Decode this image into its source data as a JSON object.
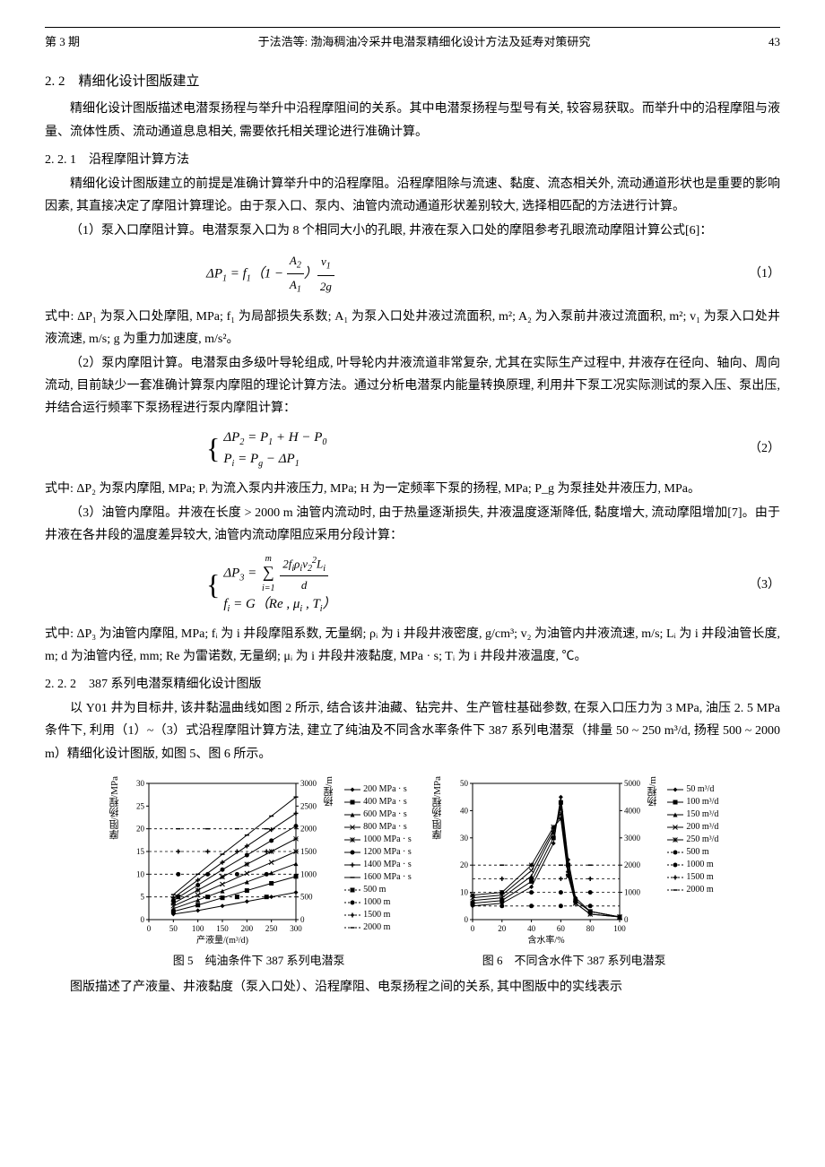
{
  "header": {
    "issue": "第 3 期",
    "title": "于法浩等: 渤海稠油冷采井电潜泵精细化设计方法及延寿对策研究",
    "page": "43"
  },
  "s22": {
    "title": "2. 2　精细化设计图版建立",
    "p1": "精细化设计图版描述电潜泵扬程与举升中沿程摩阻间的关系。其中电潜泵扬程与型号有关, 较容易获取。而举升中的沿程摩阻与液量、流体性质、流动通道息息相关, 需要依托相关理论进行准确计算。"
  },
  "s221": {
    "title": "2. 2. 1　沿程摩阻计算方法",
    "p1": "精细化设计图版建立的前提是准确计算举升中的沿程摩阻。沿程摩阻除与流速、黏度、流态相关外, 流动通道形状也是重要的影响因素, 其直接决定了摩阻计算理论。由于泵入口、泵内、油管内流动通道形状差别较大, 选择相匹配的方法进行计算。",
    "p2": "（1）泵入口摩阻计算。电潜泵泵入口为 8 个相同大小的孔眼, 井液在泵入口处的摩阻参考孔眼流动摩阻计算公式[6]：",
    "eq1_num": "（1）",
    "eq1_desc": "式中: ΔP₁ 为泵入口处摩阻, MPa; f₁ 为局部损失系数; A₁ 为泵入口处井液过流面积, m²; A₂ 为入泵前井液过流面积, m²; v₁ 为泵入口处井液流速, m/s; g 为重力加速度, m/s²。",
    "p3": "（2）泵内摩阻计算。电潜泵由多级叶导轮组成, 叶导轮内井液流道非常复杂, 尤其在实际生产过程中, 井液存在径向、轴向、周向流动, 目前缺少一套准确计算泵内摩阻的理论计算方法。通过分析电潜泵内能量转换原理, 利用井下泵工况实际测试的泵入压、泵出压, 并结合运行频率下泵扬程进行泵内摩阻计算：",
    "eq2_num": "（2）",
    "eq2_desc": "式中: ΔP₂ 为泵内摩阻, MPa; Pᵢ 为流入泵内井液压力, MPa; H 为一定频率下泵的扬程, MPa; P_g 为泵挂处井液压力, MPa。",
    "p4": "（3）油管内摩阻。井液在长度 > 2000 m 油管内流动时, 由于热量逐渐损失, 井液温度逐渐降低, 黏度增大, 流动摩阻增加[7]。由于井液在各井段的温度差异较大, 油管内流动摩阻应采用分段计算：",
    "eq3_num": "（3）",
    "eq3_desc": "式中: ΔP₃ 为油管内摩阻, MPa; fᵢ 为 i 井段摩阻系数, 无量纲; ρᵢ 为 i 井段井液密度, g/cm³; v₂ 为油管内井液流速, m/s; Lᵢ 为 i 井段油管长度, m; d 为油管内径, mm; Re 为雷诺数, 无量纲; μᵢ 为 i 井段井液黏度, MPa · s; Tᵢ 为 i 井段井液温度, ℃。"
  },
  "s222": {
    "title": "2. 2. 2　387 系列电潜泵精细化设计图版",
    "p1": "以 Y01 井为目标井, 该井黏温曲线如图 2 所示, 结合该井油藏、钻完井、生产管柱基础参数, 在泵入口压力为 3 MPa, 油压 2. 5 MPa 条件下, 利用（1）~（3）式沿程摩阻计算方法, 建立了纯油及不同含水率条件下 387 系列电潜泵（排量 50 ~ 250 m³/d, 扬程 500 ~ 2000 m）精细化设计图版, 如图 5、图 6 所示。"
  },
  "fig5": {
    "caption": "图 5　纯油条件下 387 系列电潜泵",
    "x_label": "产液量/(m³/d)",
    "y_left_label": "摩阻/扬程/MPa",
    "y_right_label": "扬程/m",
    "x_ticks": [
      "0",
      "50",
      "100",
      "150",
      "200",
      "250",
      "300"
    ],
    "y_left_ticks": [
      "0",
      "5",
      "10",
      "15",
      "20",
      "25",
      "30"
    ],
    "y_right_ticks": [
      "0",
      "500",
      "1000",
      "1500",
      "2000",
      "2500",
      "3000"
    ],
    "legend_viscosity": [
      "200 MPa · s",
      "400 MPa · s",
      "600 MPa · s",
      "800 MPa · s",
      "1000 MPa · s",
      "1200 MPa · s",
      "1400 MPa · s",
      "1600 MPa · s"
    ],
    "legend_head": [
      "500 m",
      "1000 m",
      "1500 m",
      "2000 m"
    ],
    "series": {
      "v200": [
        [
          50,
          1.2
        ],
        [
          100,
          2.0
        ],
        [
          150,
          3.0
        ],
        [
          200,
          4.0
        ],
        [
          250,
          5.0
        ],
        [
          300,
          6.0
        ]
      ],
      "v400": [
        [
          50,
          1.8
        ],
        [
          100,
          3.2
        ],
        [
          150,
          4.8
        ],
        [
          200,
          6.4
        ],
        [
          250,
          8.0
        ],
        [
          300,
          9.5
        ]
      ],
      "v600": [
        [
          50,
          2.4
        ],
        [
          100,
          4.3
        ],
        [
          150,
          6.3
        ],
        [
          200,
          8.3
        ],
        [
          250,
          10.3
        ],
        [
          300,
          12.3
        ]
      ],
      "v800": [
        [
          50,
          3.0
        ],
        [
          100,
          5.4
        ],
        [
          150,
          7.8
        ],
        [
          200,
          10.2
        ],
        [
          250,
          12.6
        ],
        [
          300,
          15.0
        ]
      ],
      "v1000": [
        [
          50,
          3.6
        ],
        [
          100,
          6.5
        ],
        [
          150,
          9.4
        ],
        [
          200,
          12.2
        ],
        [
          250,
          15.0
        ],
        [
          300,
          17.8
        ]
      ],
      "v1200": [
        [
          50,
          4.2
        ],
        [
          100,
          7.6
        ],
        [
          150,
          11.0
        ],
        [
          200,
          14.2
        ],
        [
          250,
          17.4
        ],
        [
          300,
          20.6
        ]
      ],
      "v1400": [
        [
          50,
          4.8
        ],
        [
          100,
          8.7
        ],
        [
          150,
          12.6
        ],
        [
          200,
          16.2
        ],
        [
          250,
          19.8
        ],
        [
          300,
          23.4
        ]
      ],
      "v1600": [
        [
          50,
          5.5
        ],
        [
          100,
          10.0
        ],
        [
          150,
          14.4
        ],
        [
          200,
          18.6
        ],
        [
          250,
          22.8
        ],
        [
          300,
          27.0
        ]
      ]
    },
    "head_lines": [
      5,
      10,
      15,
      20
    ],
    "markers": [
      "diamond",
      "square",
      "triangle",
      "x",
      "star",
      "circle",
      "plus",
      "dash"
    ],
    "head_markers": [
      "square",
      "circle",
      "plus",
      "dash"
    ],
    "colors": {
      "line": "#000000",
      "grid": "#cccccc",
      "bg": "#ffffff"
    }
  },
  "fig6": {
    "caption": "图 6　不同含水件下 387 系列电潜泵",
    "x_label": "含水率/%",
    "y_left_label": "摩阻/扬程/MPa",
    "y_right_label": "扬程/m",
    "x_ticks": [
      "0",
      "20",
      "40",
      "60",
      "80",
      "100"
    ],
    "y_left_ticks": [
      "0",
      "10",
      "20",
      "30",
      "40",
      "50"
    ],
    "y_right_ticks": [
      "0",
      "1000",
      "2000",
      "3000",
      "4000",
      "5000"
    ],
    "legend_flow": [
      "50 m³/d",
      "100 m³/d",
      "150 m³/d",
      "200 m³/d",
      "250 m³/d"
    ],
    "legend_head": [
      "500 m",
      "1000 m",
      "1500 m",
      "2000 m"
    ],
    "series": {
      "q50": [
        [
          0,
          5
        ],
        [
          20,
          6
        ],
        [
          40,
          12
        ],
        [
          55,
          28
        ],
        [
          60,
          45
        ],
        [
          65,
          22
        ],
        [
          70,
          8
        ],
        [
          80,
          3
        ],
        [
          100,
          1
        ]
      ],
      "q100": [
        [
          0,
          6
        ],
        [
          20,
          7
        ],
        [
          40,
          14
        ],
        [
          55,
          30
        ],
        [
          60,
          43
        ],
        [
          65,
          20
        ],
        [
          70,
          7
        ],
        [
          80,
          3
        ],
        [
          100,
          1
        ]
      ],
      "q150": [
        [
          0,
          7
        ],
        [
          20,
          8
        ],
        [
          40,
          16
        ],
        [
          55,
          32
        ],
        [
          60,
          41
        ],
        [
          65,
          18
        ],
        [
          70,
          7
        ],
        [
          80,
          3
        ],
        [
          100,
          1
        ]
      ],
      "q200": [
        [
          0,
          8
        ],
        [
          20,
          9
        ],
        [
          40,
          18
        ],
        [
          55,
          33
        ],
        [
          60,
          39
        ],
        [
          65,
          17
        ],
        [
          70,
          6
        ],
        [
          80,
          2
        ],
        [
          100,
          1
        ]
      ],
      "q250": [
        [
          0,
          9
        ],
        [
          20,
          10
        ],
        [
          40,
          20
        ],
        [
          55,
          34
        ],
        [
          60,
          37
        ],
        [
          65,
          16
        ],
        [
          70,
          6
        ],
        [
          80,
          2
        ],
        [
          100,
          1
        ]
      ]
    },
    "head_lines": [
      5,
      10,
      15,
      20
    ],
    "markers": [
      "diamond",
      "square",
      "triangle",
      "x",
      "star"
    ],
    "head_markers": [
      "circle",
      "circle",
      "plus",
      "dash"
    ],
    "colors": {
      "line": "#000000",
      "grid": "#cccccc",
      "bg": "#ffffff"
    }
  },
  "footer_para": "图版描述了产液量、井液黏度（泵入口处）、沿程摩阻、电泵扬程之间的关系, 其中图版中的实线表示"
}
